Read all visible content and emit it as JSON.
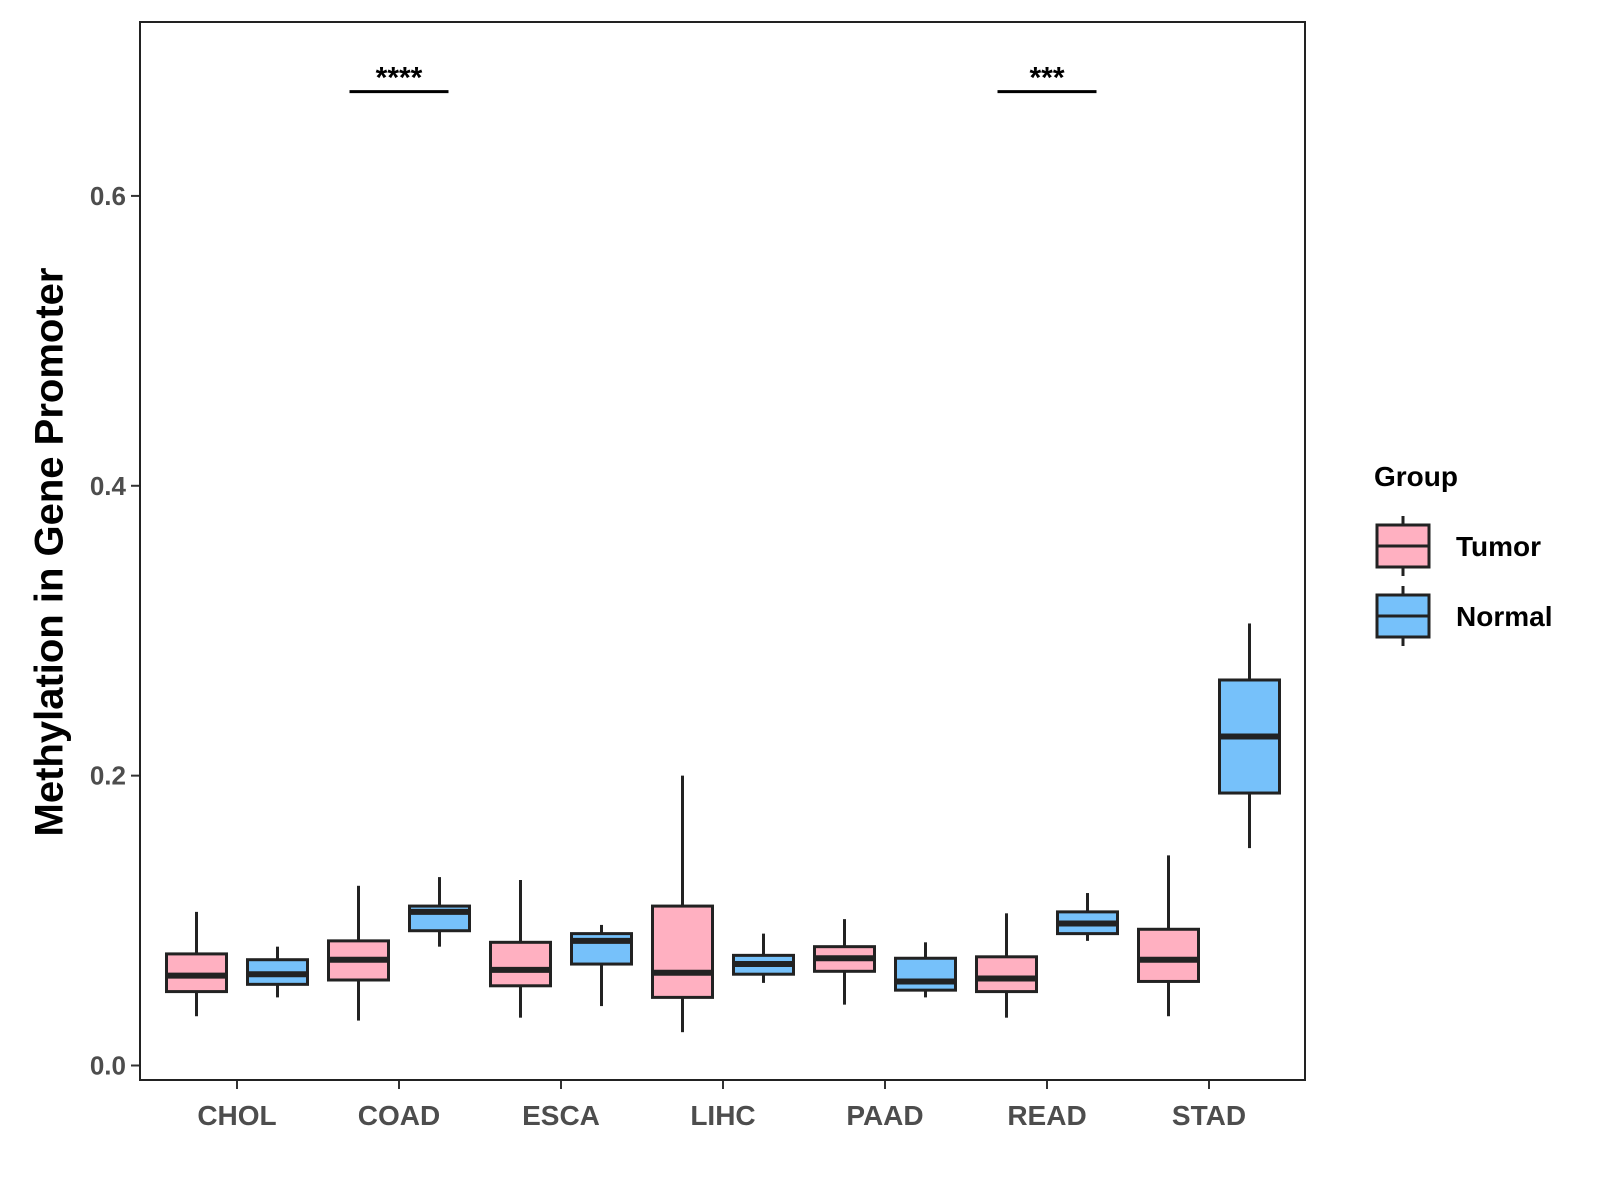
{
  "chart_data": {
    "type": "boxplot",
    "title": "",
    "xlabel": "",
    "ylabel": "Methylation in Gene Promoter",
    "ylim": [
      -0.01,
      0.72
    ],
    "yticks": [
      0.0,
      0.2,
      0.4,
      0.6
    ],
    "ytick_labels": [
      "0.0",
      "0.2",
      "0.4",
      "0.6"
    ],
    "categories": [
      "CHOL",
      "COAD",
      "ESCA",
      "LIHC",
      "PAAD",
      "READ",
      "STAD"
    ],
    "legend": {
      "title": "Group",
      "position": "right",
      "entries": [
        {
          "name": "Tumor",
          "color": "#FFB0C1"
        },
        {
          "name": "Normal",
          "color": "#76C1FA"
        }
      ]
    },
    "series": [
      {
        "name": "Tumor",
        "color": "#FFB0C1",
        "boxes": [
          {
            "category": "CHOL",
            "min": 0.034,
            "q1": 0.051,
            "median": 0.062,
            "q3": 0.077,
            "max": 0.106
          },
          {
            "category": "COAD",
            "min": 0.031,
            "q1": 0.059,
            "median": 0.073,
            "q3": 0.086,
            "max": 0.124
          },
          {
            "category": "ESCA",
            "min": 0.033,
            "q1": 0.055,
            "median": 0.066,
            "q3": 0.085,
            "max": 0.128
          },
          {
            "category": "LIHC",
            "min": 0.023,
            "q1": 0.047,
            "median": 0.064,
            "q3": 0.11,
            "max": 0.2
          },
          {
            "category": "PAAD",
            "min": 0.042,
            "q1": 0.065,
            "median": 0.074,
            "q3": 0.082,
            "max": 0.101
          },
          {
            "category": "READ",
            "min": 0.033,
            "q1": 0.051,
            "median": 0.06,
            "q3": 0.075,
            "max": 0.105
          },
          {
            "category": "STAD",
            "min": 0.034,
            "q1": 0.058,
            "median": 0.073,
            "q3": 0.094,
            "max": 0.145
          }
        ]
      },
      {
        "name": "Normal",
        "color": "#76C1FA",
        "boxes": [
          {
            "category": "CHOL",
            "min": 0.047,
            "q1": 0.056,
            "median": 0.063,
            "q3": 0.073,
            "max": 0.082
          },
          {
            "category": "COAD",
            "min": 0.082,
            "q1": 0.093,
            "median": 0.106,
            "q3": 0.11,
            "max": 0.13
          },
          {
            "category": "ESCA",
            "min": 0.041,
            "q1": 0.07,
            "median": 0.086,
            "q3": 0.091,
            "max": 0.097
          },
          {
            "category": "LIHC",
            "min": 0.057,
            "q1": 0.063,
            "median": 0.07,
            "q3": 0.076,
            "max": 0.091
          },
          {
            "category": "PAAD",
            "min": 0.047,
            "q1": 0.052,
            "median": 0.058,
            "q3": 0.074,
            "max": 0.085
          },
          {
            "category": "READ",
            "min": 0.086,
            "q1": 0.091,
            "median": 0.098,
            "q3": 0.106,
            "max": 0.119
          },
          {
            "category": "STAD",
            "min": 0.15,
            "q1": 0.188,
            "median": 0.227,
            "q3": 0.266,
            "max": 0.305
          }
        ]
      }
    ],
    "annotations": [
      {
        "category": "COAD",
        "label": "****",
        "y": 0.672
      },
      {
        "category": "READ",
        "label": "***",
        "y": 0.672
      }
    ],
    "grid": false
  }
}
